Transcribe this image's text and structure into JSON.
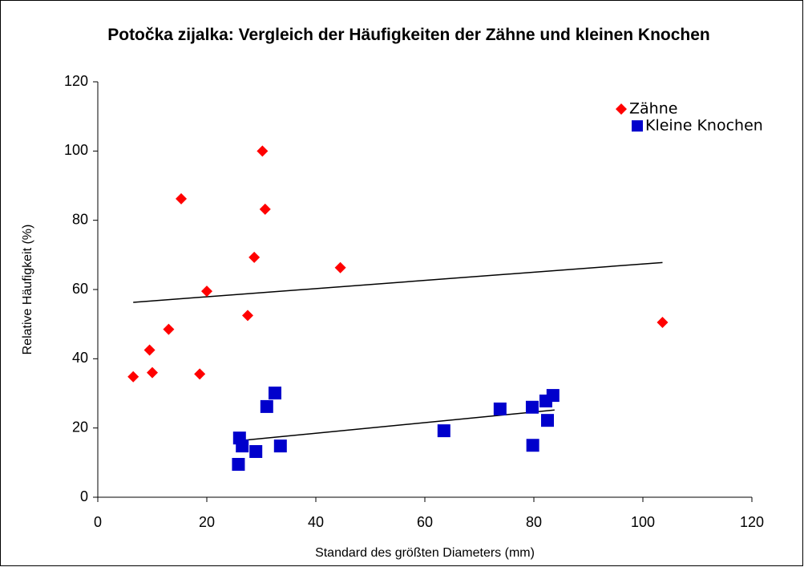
{
  "chart_data": {
    "type": "scatter",
    "title": "Potočka zijalka: Vergleich der Häufigkeiten der Zähne und kleinen Knochen",
    "xlabel": "Standard des größten Diameters (mm)",
    "ylabel": "Relative Häufigkeit (%)",
    "xlim": [
      0,
      120
    ],
    "xticks": [
      0,
      20,
      40,
      60,
      80,
      100,
      120
    ],
    "ylim": [
      0,
      120
    ],
    "yticks": [
      0,
      20,
      40,
      60,
      80,
      100,
      120
    ],
    "grid": false,
    "legend": "top-right",
    "series": [
      {
        "name": "Zähne",
        "color": "#ff0000",
        "marker": "diamond",
        "x": [
          6.5,
          9.5,
          10,
          13,
          15.3,
          18.7,
          20,
          27.5,
          28.7,
          30.2,
          30.7,
          44.5,
          103.6
        ],
        "values": [
          34.8,
          42.5,
          36,
          48.5,
          86.2,
          35.6,
          59.5,
          52.5,
          69.3,
          100,
          83.2,
          66.3,
          50.5
        ],
        "trendline": {
          "x": [
            6.5,
            103.6
          ],
          "values": [
            56.3,
            67.8
          ]
        }
      },
      {
        "name": "Kleine Knochen",
        "color": "#0000cc",
        "marker": "square",
        "x": [
          26,
          26.5,
          25.8,
          29,
          31,
          32.5,
          33.5,
          63.5,
          73.8,
          79.7,
          79.8,
          82.2,
          82.5,
          83.5
        ],
        "values": [
          17.1,
          14.8,
          9.5,
          13.2,
          26.2,
          30.1,
          14.8,
          19.2,
          25.5,
          26,
          15,
          27.8,
          22.2,
          29.4
        ],
        "trendline": {
          "x": [
            25.8,
            83.8
          ],
          "values": [
            16.3,
            25.2
          ]
        }
      }
    ]
  }
}
